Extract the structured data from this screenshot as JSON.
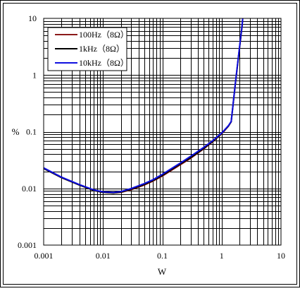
{
  "chart_data": {
    "type": "line",
    "title": "",
    "xlabel": "W",
    "ylabel": "%",
    "x_scale": "log",
    "y_scale": "log",
    "xlim": [
      0.001,
      10
    ],
    "ylim": [
      0.001,
      10
    ],
    "grid": true,
    "legend_position": "top-left",
    "x_tick_labels": [
      "0.001",
      "0.01",
      "0.1",
      "1",
      "10"
    ],
    "y_tick_labels": [
      "0.001",
      "0.01",
      "0.1",
      "1",
      "10"
    ],
    "series": [
      {
        "name": "100Hz（8Ω）",
        "color": "#8B1A1A",
        "x": [
          0.001,
          0.002,
          0.004,
          0.007,
          0.01,
          0.015,
          0.02,
          0.03,
          0.05,
          0.07,
          0.1,
          0.2,
          0.3,
          0.5,
          0.7,
          1.0,
          1.3,
          1.45,
          1.7,
          2.0,
          2.2,
          2.3
        ],
        "y": [
          0.0225,
          0.0155,
          0.0115,
          0.0092,
          0.0085,
          0.0083,
          0.0085,
          0.0095,
          0.0115,
          0.0135,
          0.0165,
          0.026,
          0.034,
          0.05,
          0.066,
          0.092,
          0.125,
          0.15,
          0.7,
          3.0,
          7.0,
          12.0
        ]
      },
      {
        "name": "1kHz（8Ω）",
        "color": "#000000",
        "x": [
          0.001,
          0.002,
          0.004,
          0.007,
          0.01,
          0.015,
          0.02,
          0.03,
          0.05,
          0.07,
          0.1,
          0.2,
          0.3,
          0.5,
          0.7,
          1.0,
          1.3,
          1.45,
          1.7,
          2.0,
          2.2,
          2.3
        ],
        "y": [
          0.0225,
          0.0155,
          0.0115,
          0.0092,
          0.0085,
          0.0083,
          0.0086,
          0.0097,
          0.0118,
          0.0138,
          0.017,
          0.027,
          0.035,
          0.051,
          0.067,
          0.093,
          0.126,
          0.15,
          0.7,
          3.0,
          7.0,
          12.0
        ]
      },
      {
        "name": "10kHz（8Ω）",
        "color": "#1010E0",
        "x": [
          0.001,
          0.002,
          0.004,
          0.007,
          0.01,
          0.015,
          0.02,
          0.03,
          0.05,
          0.07,
          0.1,
          0.2,
          0.3,
          0.5,
          0.7,
          1.0,
          1.3,
          1.45,
          1.7,
          2.0,
          2.2,
          2.3
        ],
        "y": [
          0.023,
          0.0158,
          0.0117,
          0.0094,
          0.0087,
          0.0085,
          0.0088,
          0.01,
          0.0122,
          0.0143,
          0.0178,
          0.028,
          0.037,
          0.053,
          0.069,
          0.095,
          0.128,
          0.152,
          0.72,
          3.1,
          7.2,
          12.0
        ]
      }
    ]
  }
}
